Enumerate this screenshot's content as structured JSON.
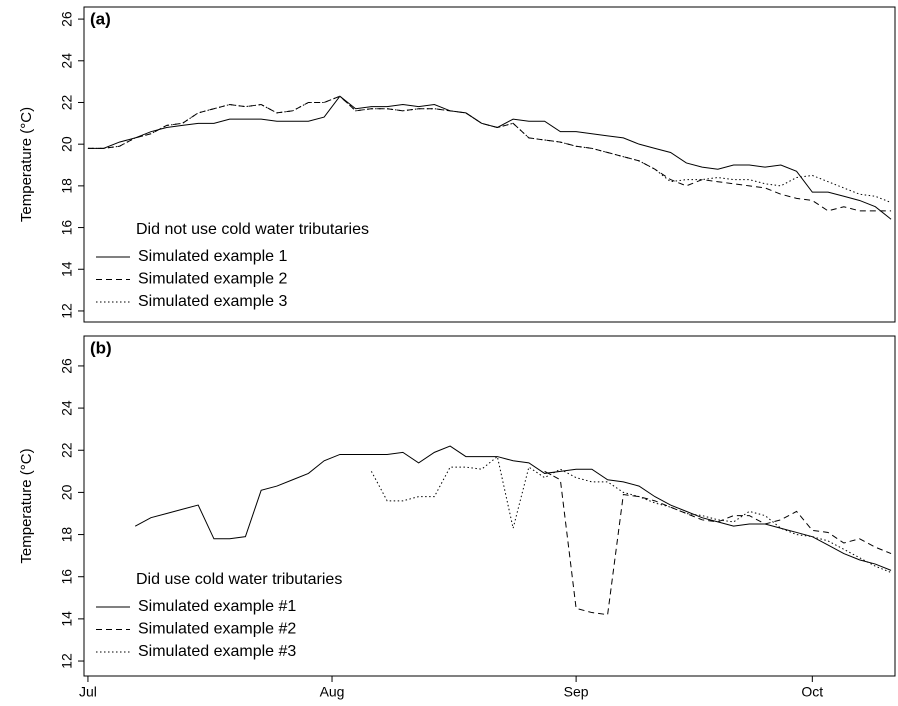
{
  "chart_data": [
    {
      "type": "line",
      "label": "(a)",
      "ylabel": "Temperature (°C)",
      "legend_title": "Did not use cold water tributaries",
      "x": [
        0,
        2,
        4,
        6,
        8,
        10,
        12,
        14,
        16,
        18,
        20,
        22,
        24,
        26,
        28,
        30,
        32,
        34,
        36,
        38,
        40,
        42,
        44,
        46,
        48,
        50,
        52,
        54,
        56,
        58,
        60,
        62,
        64,
        66,
        68,
        70,
        72,
        74,
        76,
        78,
        80,
        82,
        84,
        86,
        88,
        90,
        92,
        94,
        96,
        98,
        100,
        102
      ],
      "xlim": [
        -0.5,
        102.5
      ],
      "ylim": [
        11.47,
        26.58
      ],
      "yticks": [
        12,
        14,
        16,
        18,
        20,
        22,
        24,
        26
      ],
      "series": [
        {
          "name": "Simulated example 1",
          "color": "#000000",
          "style": "solid",
          "values": [
            19.8,
            19.8,
            20.1,
            20.3,
            20.6,
            20.8,
            20.9,
            21.0,
            21.0,
            21.2,
            21.2,
            21.2,
            21.1,
            21.1,
            21.1,
            21.3,
            22.3,
            21.7,
            21.8,
            21.8,
            21.9,
            21.8,
            21.9,
            21.6,
            21.5,
            21.0,
            20.8,
            21.2,
            21.1,
            21.1,
            20.6,
            20.6,
            20.5,
            20.4,
            20.3,
            20.0,
            19.8,
            19.6,
            19.1,
            18.9,
            18.8,
            19.0,
            19.0,
            18.9,
            19.0,
            18.7,
            17.7,
            17.7,
            17.5,
            17.3,
            17.0,
            16.4
          ]
        },
        {
          "name": "Simulated example 2",
          "color": "#000000",
          "style": "dashed",
          "values": [
            19.8,
            19.8,
            19.9,
            20.3,
            20.5,
            20.9,
            21.0,
            21.5,
            21.7,
            21.9,
            21.8,
            21.9,
            21.5,
            21.6,
            22.0,
            22.0,
            22.3,
            21.6,
            21.7,
            21.7,
            21.6,
            21.7,
            21.7,
            21.6,
            21.5,
            21.0,
            20.8,
            21.0,
            20.3,
            20.2,
            20.1,
            19.9,
            19.8,
            19.6,
            19.4,
            19.2,
            18.8,
            18.3,
            18.0,
            18.3,
            18.2,
            18.1,
            18.0,
            17.9,
            17.6,
            17.4,
            17.3,
            16.8,
            17.0,
            16.8,
            16.8,
            16.8
          ]
        },
        {
          "name": "Simulated example 3",
          "color": "#000000",
          "style": "dotted",
          "values": [
            19.8,
            19.8,
            19.9,
            20.3,
            20.5,
            20.9,
            21.0,
            21.5,
            21.7,
            21.9,
            21.8,
            21.9,
            21.5,
            21.6,
            22.0,
            22.0,
            22.3,
            21.6,
            21.7,
            21.7,
            21.6,
            21.7,
            21.7,
            21.6,
            21.5,
            21.0,
            20.8,
            21.0,
            20.3,
            20.2,
            20.1,
            19.9,
            19.8,
            19.6,
            19.4,
            19.2,
            18.8,
            18.2,
            18.3,
            18.3,
            18.4,
            18.3,
            18.3,
            18.1,
            18.0,
            18.4,
            18.5,
            18.2,
            17.9,
            17.6,
            17.5,
            17.2
          ]
        }
      ]
    },
    {
      "type": "line",
      "label": "(b)",
      "ylabel": "Temperature (°C)",
      "legend_title": "Did use cold water tributaries",
      "x": [
        0,
        2,
        4,
        6,
        8,
        10,
        12,
        14,
        16,
        18,
        20,
        22,
        24,
        26,
        28,
        30,
        32,
        34,
        36,
        38,
        40,
        42,
        44,
        46,
        48,
        50,
        52,
        54,
        56,
        58,
        60,
        62,
        64,
        66,
        68,
        70,
        72,
        74,
        76,
        78,
        80,
        82,
        84,
        86,
        88,
        90,
        92,
        94,
        96,
        98,
        100,
        102
      ],
      "xlim": [
        -0.5,
        102.5
      ],
      "ylim": [
        11.29,
        27.42
      ],
      "yticks": [
        12,
        14,
        16,
        18,
        20,
        22,
        24,
        26
      ],
      "xticks": [
        {
          "value": 0,
          "label": "Jul"
        },
        {
          "value": 31,
          "label": "Aug"
        },
        {
          "value": 62,
          "label": "Sep"
        },
        {
          "value": 92,
          "label": "Oct"
        }
      ],
      "series": [
        {
          "name": "Simulated example #1",
          "color": "#000000",
          "style": "solid",
          "values": [
            null,
            null,
            null,
            18.4,
            18.8,
            19.0,
            19.2,
            19.4,
            17.8,
            17.8,
            17.9,
            20.1,
            20.3,
            20.6,
            20.9,
            21.5,
            21.8,
            21.8,
            21.8,
            21.8,
            21.9,
            21.4,
            21.9,
            22.2,
            21.7,
            21.7,
            21.7,
            21.5,
            21.4,
            20.9,
            21.0,
            21.1,
            21.1,
            20.6,
            20.5,
            20.3,
            19.8,
            19.4,
            19.1,
            18.8,
            18.6,
            18.4,
            18.5,
            18.5,
            18.3,
            18.1,
            17.9,
            17.5,
            17.1,
            16.8,
            16.6,
            16.3
          ]
        },
        {
          "name": "Simulated example #2",
          "color": "#000000",
          "style": "dashed",
          "values": [
            null,
            null,
            null,
            null,
            null,
            null,
            null,
            null,
            null,
            null,
            null,
            null,
            null,
            null,
            null,
            null,
            null,
            null,
            null,
            null,
            null,
            null,
            null,
            null,
            null,
            null,
            null,
            null,
            null,
            21.0,
            20.6,
            14.5,
            14.3,
            14.2,
            19.9,
            19.8,
            19.6,
            19.3,
            19.0,
            18.7,
            18.6,
            18.9,
            18.9,
            18.5,
            18.7,
            19.1,
            18.2,
            18.1,
            17.6,
            17.8,
            17.4,
            17.1
          ]
        },
        {
          "name": "Simulated example #3",
          "color": "#000000",
          "style": "dotted",
          "values": [
            null,
            null,
            null,
            null,
            null,
            null,
            null,
            null,
            null,
            null,
            null,
            null,
            null,
            null,
            null,
            null,
            null,
            null,
            21.0,
            19.6,
            19.6,
            19.8,
            19.8,
            21.2,
            21.2,
            21.1,
            21.7,
            18.3,
            21.2,
            20.7,
            21.1,
            20.7,
            20.5,
            20.5,
            20.0,
            19.8,
            19.5,
            19.3,
            19.0,
            18.9,
            18.7,
            18.6,
            19.1,
            18.9,
            18.3,
            18.0,
            17.9,
            17.7,
            17.3,
            16.9,
            16.5,
            16.2
          ]
        }
      ]
    }
  ]
}
